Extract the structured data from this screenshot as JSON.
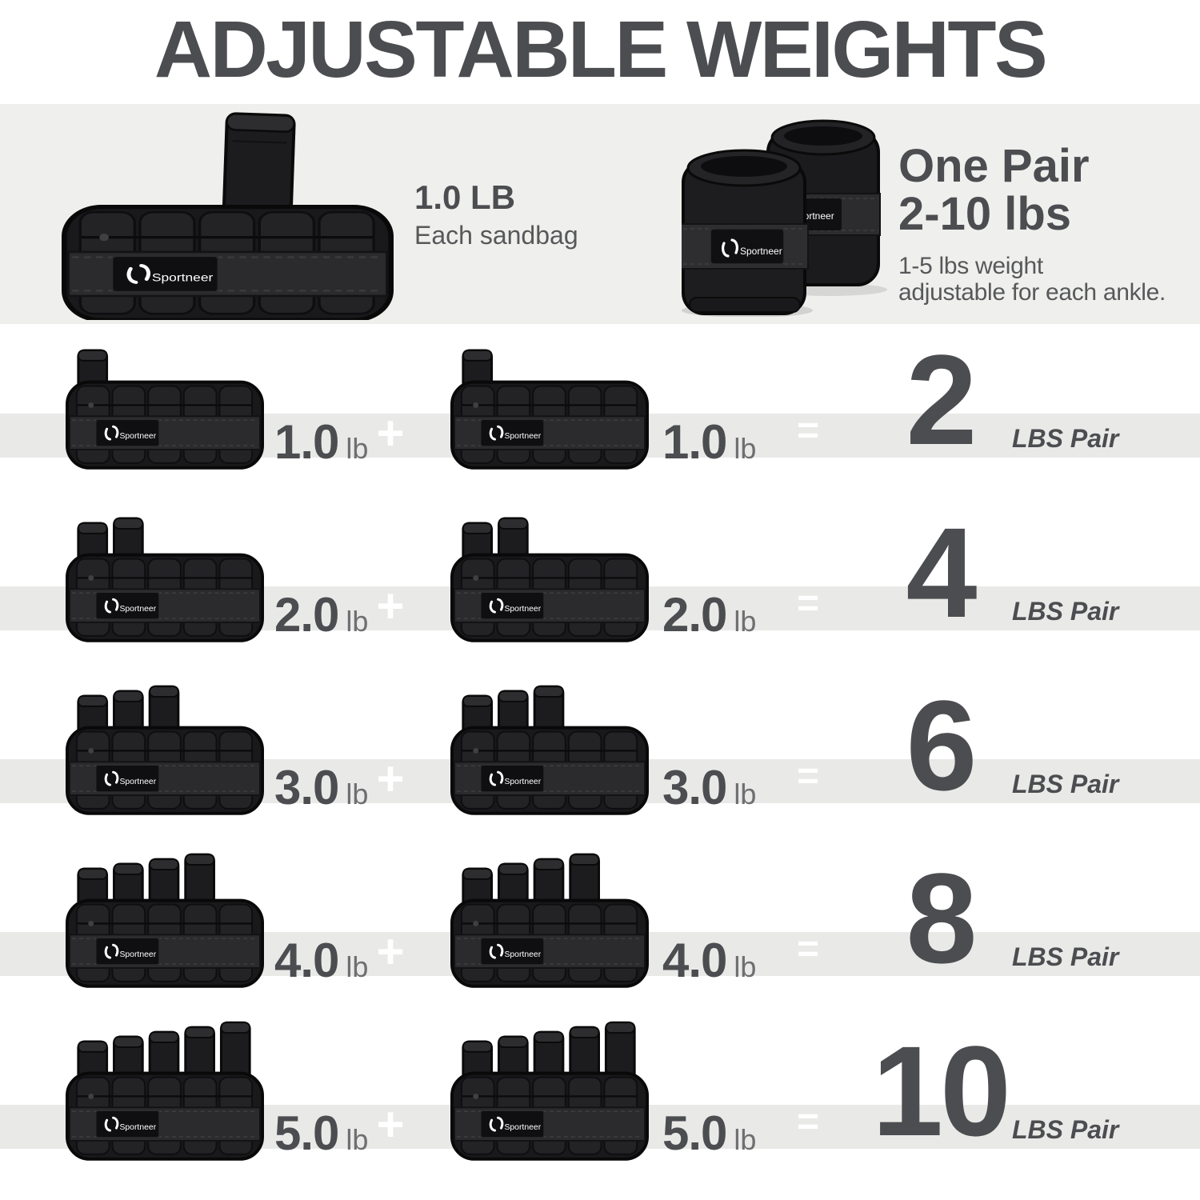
{
  "title": "ADJUSTABLE WEIGHTS",
  "brand": "Sportneer",
  "hero": {
    "sandbag_weight": "1.0 LB",
    "sandbag_caption": "Each sandbag",
    "pair_title_line1": "One Pair",
    "pair_title_line2": "2-10 lbs",
    "pair_note_line1": "1-5 lbs weight",
    "pair_note_line2": "adjustable for each ankle."
  },
  "operators": {
    "plus": "+",
    "equals": "="
  },
  "labels": {
    "unit": "lb",
    "total_unit": "LBS Pair"
  },
  "rows": [
    {
      "sandbags": 1,
      "left_value": "1.0",
      "right_value": "1.0",
      "total": "2"
    },
    {
      "sandbags": 2,
      "left_value": "2.0",
      "right_value": "2.0",
      "total": "4"
    },
    {
      "sandbags": 3,
      "left_value": "3.0",
      "right_value": "3.0",
      "total": "6"
    },
    {
      "sandbags": 4,
      "left_value": "4.0",
      "right_value": "4.0",
      "total": "8"
    },
    {
      "sandbags": 5,
      "left_value": "5.0",
      "right_value": "5.0",
      "total": "10"
    }
  ],
  "colors": {
    "text_dark": "#4c4d50",
    "text_medium": "#57585a",
    "stripe": "#e9e9e8",
    "banner": "#efefed",
    "operator": "#ffffff",
    "weight_black": "#1a1a1c"
  }
}
